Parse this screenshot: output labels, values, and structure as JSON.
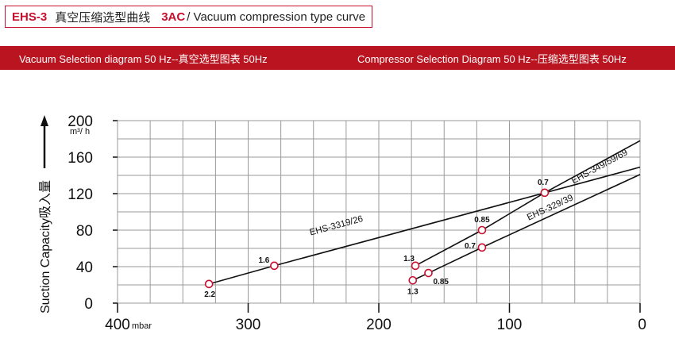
{
  "header": {
    "model": "EHS-3",
    "title_cn": "真空压缩选型曲线",
    "code": "3AC",
    "title_en": "/ Vacuum compression type curve"
  },
  "banner": {
    "left": "Vacuum Selection diagram 50 Hz--真空选型图表 50Hz",
    "right": "Compressor Selection Diagram 50 Hz--压缩选型图表 50Hz"
  },
  "chart_data": {
    "type": "line",
    "title": "",
    "xlabel": "",
    "ylabel": "Suction Capacity吸入量",
    "x_unit": "mbar",
    "y_unit": "m³/ h",
    "xlim": [
      400,
      0
    ],
    "ylim": [
      0,
      200
    ],
    "x_ticks": [
      400,
      300,
      200,
      100,
      0
    ],
    "y_ticks": [
      0,
      40,
      80,
      120,
      160,
      200
    ],
    "grid": true,
    "colors": {
      "line": "#111111",
      "marker": "#c8102e",
      "banner": "#b9141f"
    },
    "series": [
      {
        "name": "EHS-3319/26",
        "label_at": [
          232,
          82
        ],
        "points": [
          {
            "x": 330,
            "y": 21,
            "label": "2.2"
          },
          {
            "x": 280,
            "y": 41,
            "label": "1.6"
          },
          {
            "x": 0,
            "y": 149,
            "label": ""
          }
        ]
      },
      {
        "name": "EHS-349/59/69",
        "label_at": [
          30,
          147
        ],
        "points": [
          {
            "x": 172,
            "y": 41,
            "label": "1.3"
          },
          {
            "x": 121,
            "y": 80,
            "label": "0.85"
          },
          {
            "x": 73,
            "y": 121,
            "label": "0.7"
          },
          {
            "x": 0,
            "y": 178,
            "label": ""
          }
        ]
      },
      {
        "name": "EHS-329/39",
        "label_at": [
          68,
          102
        ],
        "points": [
          {
            "x": 174,
            "y": 25,
            "label": "1.3"
          },
          {
            "x": 162,
            "y": 33,
            "label": "0.85"
          },
          {
            "x": 121,
            "y": 61,
            "label": "0.7"
          },
          {
            "x": 0,
            "y": 141,
            "label": ""
          }
        ]
      }
    ]
  }
}
